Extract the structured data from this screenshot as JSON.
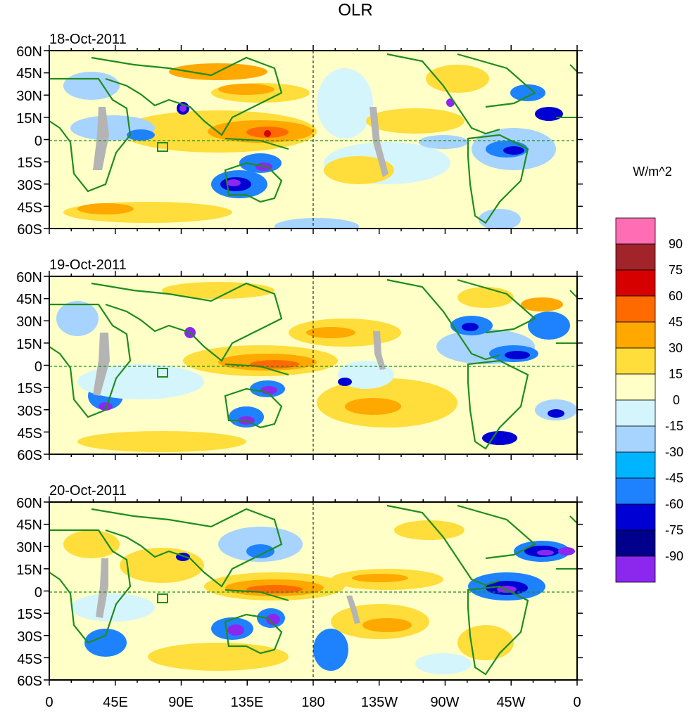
{
  "title": "OLR",
  "units_label": "W/m^2",
  "panels": [
    {
      "date": "18-Oct-2011"
    },
    {
      "date": "19-Oct-2011"
    },
    {
      "date": "20-Oct-2011"
    }
  ],
  "lat_ticks": [
    "60N",
    "45N",
    "30N",
    "15N",
    "0",
    "15S",
    "30S",
    "45S",
    "60S"
  ],
  "lon_ticks": [
    "0",
    "45E",
    "90E",
    "135E",
    "180",
    "135W",
    "90W",
    "45W",
    "0"
  ],
  "colorbar": {
    "labels": [
      "90",
      "75",
      "60",
      "45",
      "30",
      "15",
      "0",
      "-15",
      "-30",
      "-45",
      "-60",
      "-75",
      "-90"
    ],
    "colors": [
      "#ff6eb4",
      "#a0242a",
      "#d60000",
      "#ff6a00",
      "#ffa800",
      "#ffdd3a",
      "#ffffc8",
      "#d4f5fc",
      "#a6d4ff",
      "#00b4ff",
      "#1e82ff",
      "#0000d4",
      "#00008c",
      "#8c28ee"
    ]
  },
  "colors": {
    "coast": "#1e8c1e",
    "border": "#2f7d2f",
    "missing": "#b4b4b4"
  }
}
